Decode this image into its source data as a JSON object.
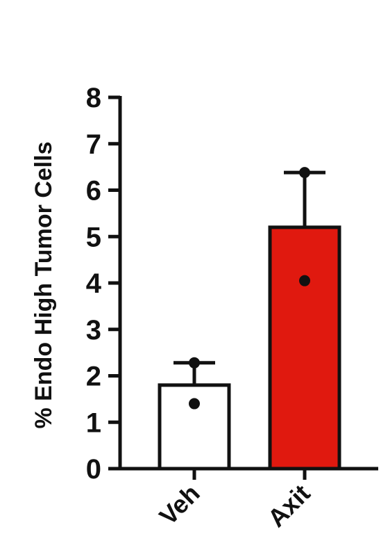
{
  "chart_data": {
    "type": "bar",
    "categories": [
      "Veh",
      "Axit"
    ],
    "values": [
      1.8,
      5.2
    ],
    "error_upper": [
      2.28,
      6.38
    ],
    "points": [
      [
        1.4,
        2.28
      ],
      [
        4.05,
        6.38
      ]
    ],
    "bar_colors": [
      "#ffffff",
      "#e0190f"
    ],
    "ylabel": "% Endo High Tumor Cells",
    "ylim": [
      0,
      8
    ],
    "yticks": [
      "0",
      "1",
      "2",
      "3",
      "4",
      "5",
      "6",
      "7",
      "8"
    ],
    "grid": false
  }
}
